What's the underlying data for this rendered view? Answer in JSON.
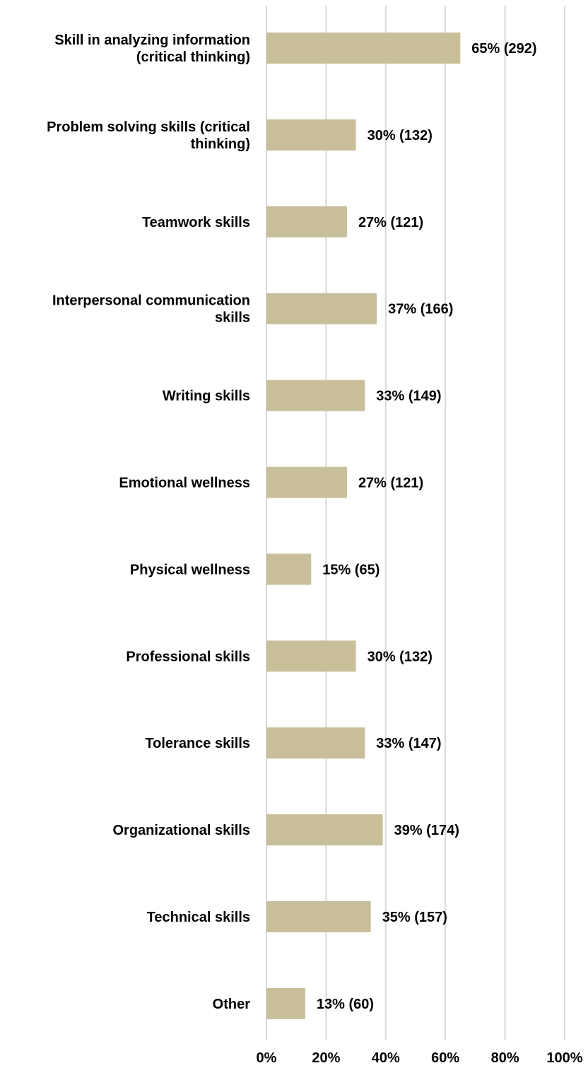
{
  "chart_data": {
    "type": "bar",
    "orientation": "horizontal",
    "categories": [
      [
        "Skill in analyzing information",
        "(critical thinking)"
      ],
      [
        "Problem solving skills (critical",
        "thinking)"
      ],
      [
        "Teamwork skills"
      ],
      [
        "Interpersonal communication",
        "skills"
      ],
      [
        "Writing skills"
      ],
      [
        "Emotional wellness"
      ],
      [
        "Physical wellness"
      ],
      [
        "Professional skills"
      ],
      [
        "Tolerance skills"
      ],
      [
        "Organizational skills"
      ],
      [
        "Technical skills"
      ],
      [
        "Other"
      ]
    ],
    "values": [
      65,
      30,
      27,
      37,
      33,
      27,
      15,
      30,
      33,
      39,
      35,
      13
    ],
    "data_labels": [
      "65% (292)",
      "30% (132)",
      "27% (121)",
      "37% (166)",
      "33% (149)",
      "27% (121)",
      "15% (65)",
      "30% (132)",
      "33% (147)",
      "39% (174)",
      "35% (157)",
      "13% (60)"
    ],
    "x_ticks": [
      0,
      20,
      40,
      60,
      80,
      100
    ],
    "x_tick_labels": [
      "0%",
      "20%",
      "40%",
      "60%",
      "80%",
      "100%"
    ],
    "xlim": [
      0,
      100
    ],
    "bar_color": "#c8bf9a",
    "grid": true,
    "legend": "none"
  }
}
